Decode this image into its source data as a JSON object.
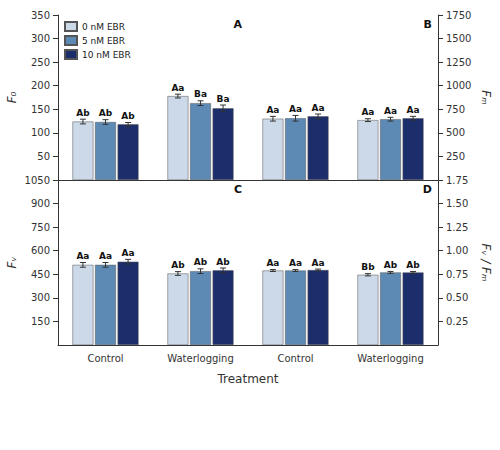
{
  "chart_data": [
    {
      "type": "bar",
      "title": "A",
      "ylabel": "F₀",
      "categories": [
        null,
        null
      ],
      "series": [
        {
          "name": "0 nM EBR",
          "color": "#ccd9e8",
          "values": [
            124,
            178
          ],
          "errors": [
            5,
            4
          ],
          "labels": [
            "Ab",
            "Aa"
          ]
        },
        {
          "name": "5 nM EBR",
          "color": "#5d8ab5",
          "values": [
            123,
            163
          ],
          "errors": [
            5,
            5
          ],
          "labels": [
            "Ab",
            "Ba"
          ]
        },
        {
          "name": "10 nM EBR",
          "color": "#1c2d6b",
          "values": [
            118,
            152
          ],
          "errors": [
            4,
            7
          ],
          "labels": [
            "Ab",
            "Ba"
          ]
        }
      ],
      "ylim": [
        0,
        350
      ],
      "yticks": [
        50,
        100,
        150,
        200,
        250,
        300,
        350
      ],
      "grid": false,
      "legend": "upper left"
    },
    {
      "type": "bar",
      "title": "B",
      "ylabel": "Fₘ",
      "categories": [
        null,
        null
      ],
      "series": [
        {
          "name": "0 nM EBR",
          "color": "#ccd9e8",
          "values": [
            650,
            635
          ],
          "errors": [
            25,
            15
          ],
          "labels": [
            "Aa",
            "Aa"
          ]
        },
        {
          "name": "5 nM EBR",
          "color": "#5d8ab5",
          "values": [
            655,
            645
          ],
          "errors": [
            30,
            20
          ],
          "labels": [
            "Aa",
            "Aa"
          ]
        },
        {
          "name": "10 nM EBR",
          "color": "#1c2d6b",
          "values": [
            675,
            655
          ],
          "errors": [
            25,
            20
          ],
          "labels": [
            "Aa",
            "Aa"
          ]
        }
      ],
      "ylim": [
        0,
        1750
      ],
      "yticks": [
        250,
        500,
        750,
        1000,
        1250,
        1500,
        1750
      ],
      "grid": false
    },
    {
      "type": "bar",
      "title": "C",
      "ylabel": "Fᵥ",
      "xlabel": "Treatment",
      "categories": [
        "Control",
        "Waterlogging"
      ],
      "series": [
        {
          "name": "0 nM EBR",
          "color": "#ccd9e8",
          "values": [
            510,
            455
          ],
          "errors": [
            15,
            12
          ],
          "labels": [
            "Aa",
            "Ab"
          ]
        },
        {
          "name": "5 nM EBR",
          "color": "#5d8ab5",
          "values": [
            510,
            470
          ],
          "errors": [
            15,
            15
          ],
          "labels": [
            "Aa",
            "Ab"
          ]
        },
        {
          "name": "10 nM EBR",
          "color": "#1c2d6b",
          "values": [
            530,
            475
          ],
          "errors": [
            15,
            15
          ],
          "labels": [
            "Aa",
            "Ab"
          ]
        }
      ],
      "ylim": [
        0,
        1050
      ],
      "yticks": [
        150,
        300,
        450,
        600,
        750,
        900,
        1050
      ],
      "grid": false
    },
    {
      "type": "bar",
      "title": "D",
      "ylabel": "Fᵥ / Fₘ",
      "categories": [
        "Control",
        "Waterlogging"
      ],
      "series": [
        {
          "name": "0 nM EBR",
          "color": "#ccd9e8",
          "values": [
            0.79,
            0.745
          ],
          "errors": [
            0.01,
            0.012
          ],
          "labels": [
            "Aa",
            "Bb"
          ]
        },
        {
          "name": "5 nM EBR",
          "color": "#5d8ab5",
          "values": [
            0.79,
            0.77
          ],
          "errors": [
            0.01,
            0.01
          ],
          "labels": [
            "Aa",
            "Ab"
          ]
        },
        {
          "name": "10 nM EBR",
          "color": "#1c2d6b",
          "values": [
            0.795,
            0.77
          ],
          "errors": [
            0.01,
            0.01
          ],
          "labels": [
            "Aa",
            "Ab"
          ]
        }
      ],
      "ylim": [
        0,
        1.75
      ],
      "yticks": [
        0.25,
        {
          "value": 0.5,
          "label": "0.50"
        },
        0.75,
        {
          "value": 1.0,
          "label": "1.00"
        },
        1.25,
        {
          "value": 1.5,
          "label": "1.50"
        },
        1.75
      ],
      "grid": false
    }
  ]
}
